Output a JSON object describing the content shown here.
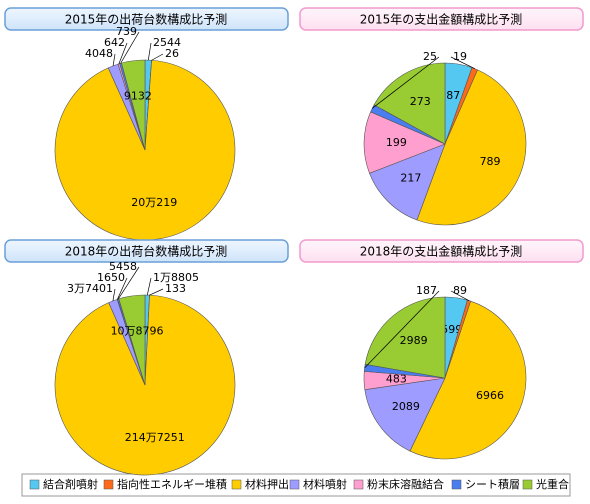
{
  "chart_data": [
    {
      "type": "pie",
      "title": "2015年の出荷台数構成比予測",
      "values": [
        2544,
        26,
        200219,
        4048,
        642,
        739,
        9132
      ],
      "value_labels": [
        "2544",
        "26",
        "20万219",
        "4048",
        "642",
        "739",
        "9132"
      ]
    },
    {
      "type": "pie",
      "title": "2015年の支出金額構成比予測",
      "values": [
        87,
        19,
        789,
        217,
        199,
        25,
        273
      ],
      "value_labels": [
        "87",
        "19",
        "789",
        "217",
        "199",
        "25",
        "273"
      ]
    },
    {
      "type": "pie",
      "title": "2018年の出荷台数構成比予測",
      "values": [
        18805,
        133,
        2147251,
        37401,
        1650,
        5458,
        108796
      ],
      "value_labels": [
        "1万8805",
        "133",
        "214万7251",
        "3万7401",
        "1650",
        "5458",
        "10万8796"
      ]
    },
    {
      "type": "pie",
      "title": "2018年の支出金額構成比予測",
      "values": [
        599,
        89,
        6966,
        2089,
        483,
        187,
        2989
      ],
      "value_labels": [
        "599",
        "89",
        "6966",
        "2089",
        "483",
        "187",
        "2989"
      ]
    }
  ],
  "legend": {
    "labels": [
      "結合剤噴射",
      "指向性エネルギー堆積",
      "材料押出",
      "材料噴射",
      "粉末床溶融結合",
      "シート積層",
      "光重合"
    ],
    "colors": [
      "#55c8f2",
      "#ff6a1a",
      "#ffcc00",
      "#9f9cff",
      "#ff9fcf",
      "#4a7df0",
      "#99cc33"
    ]
  }
}
